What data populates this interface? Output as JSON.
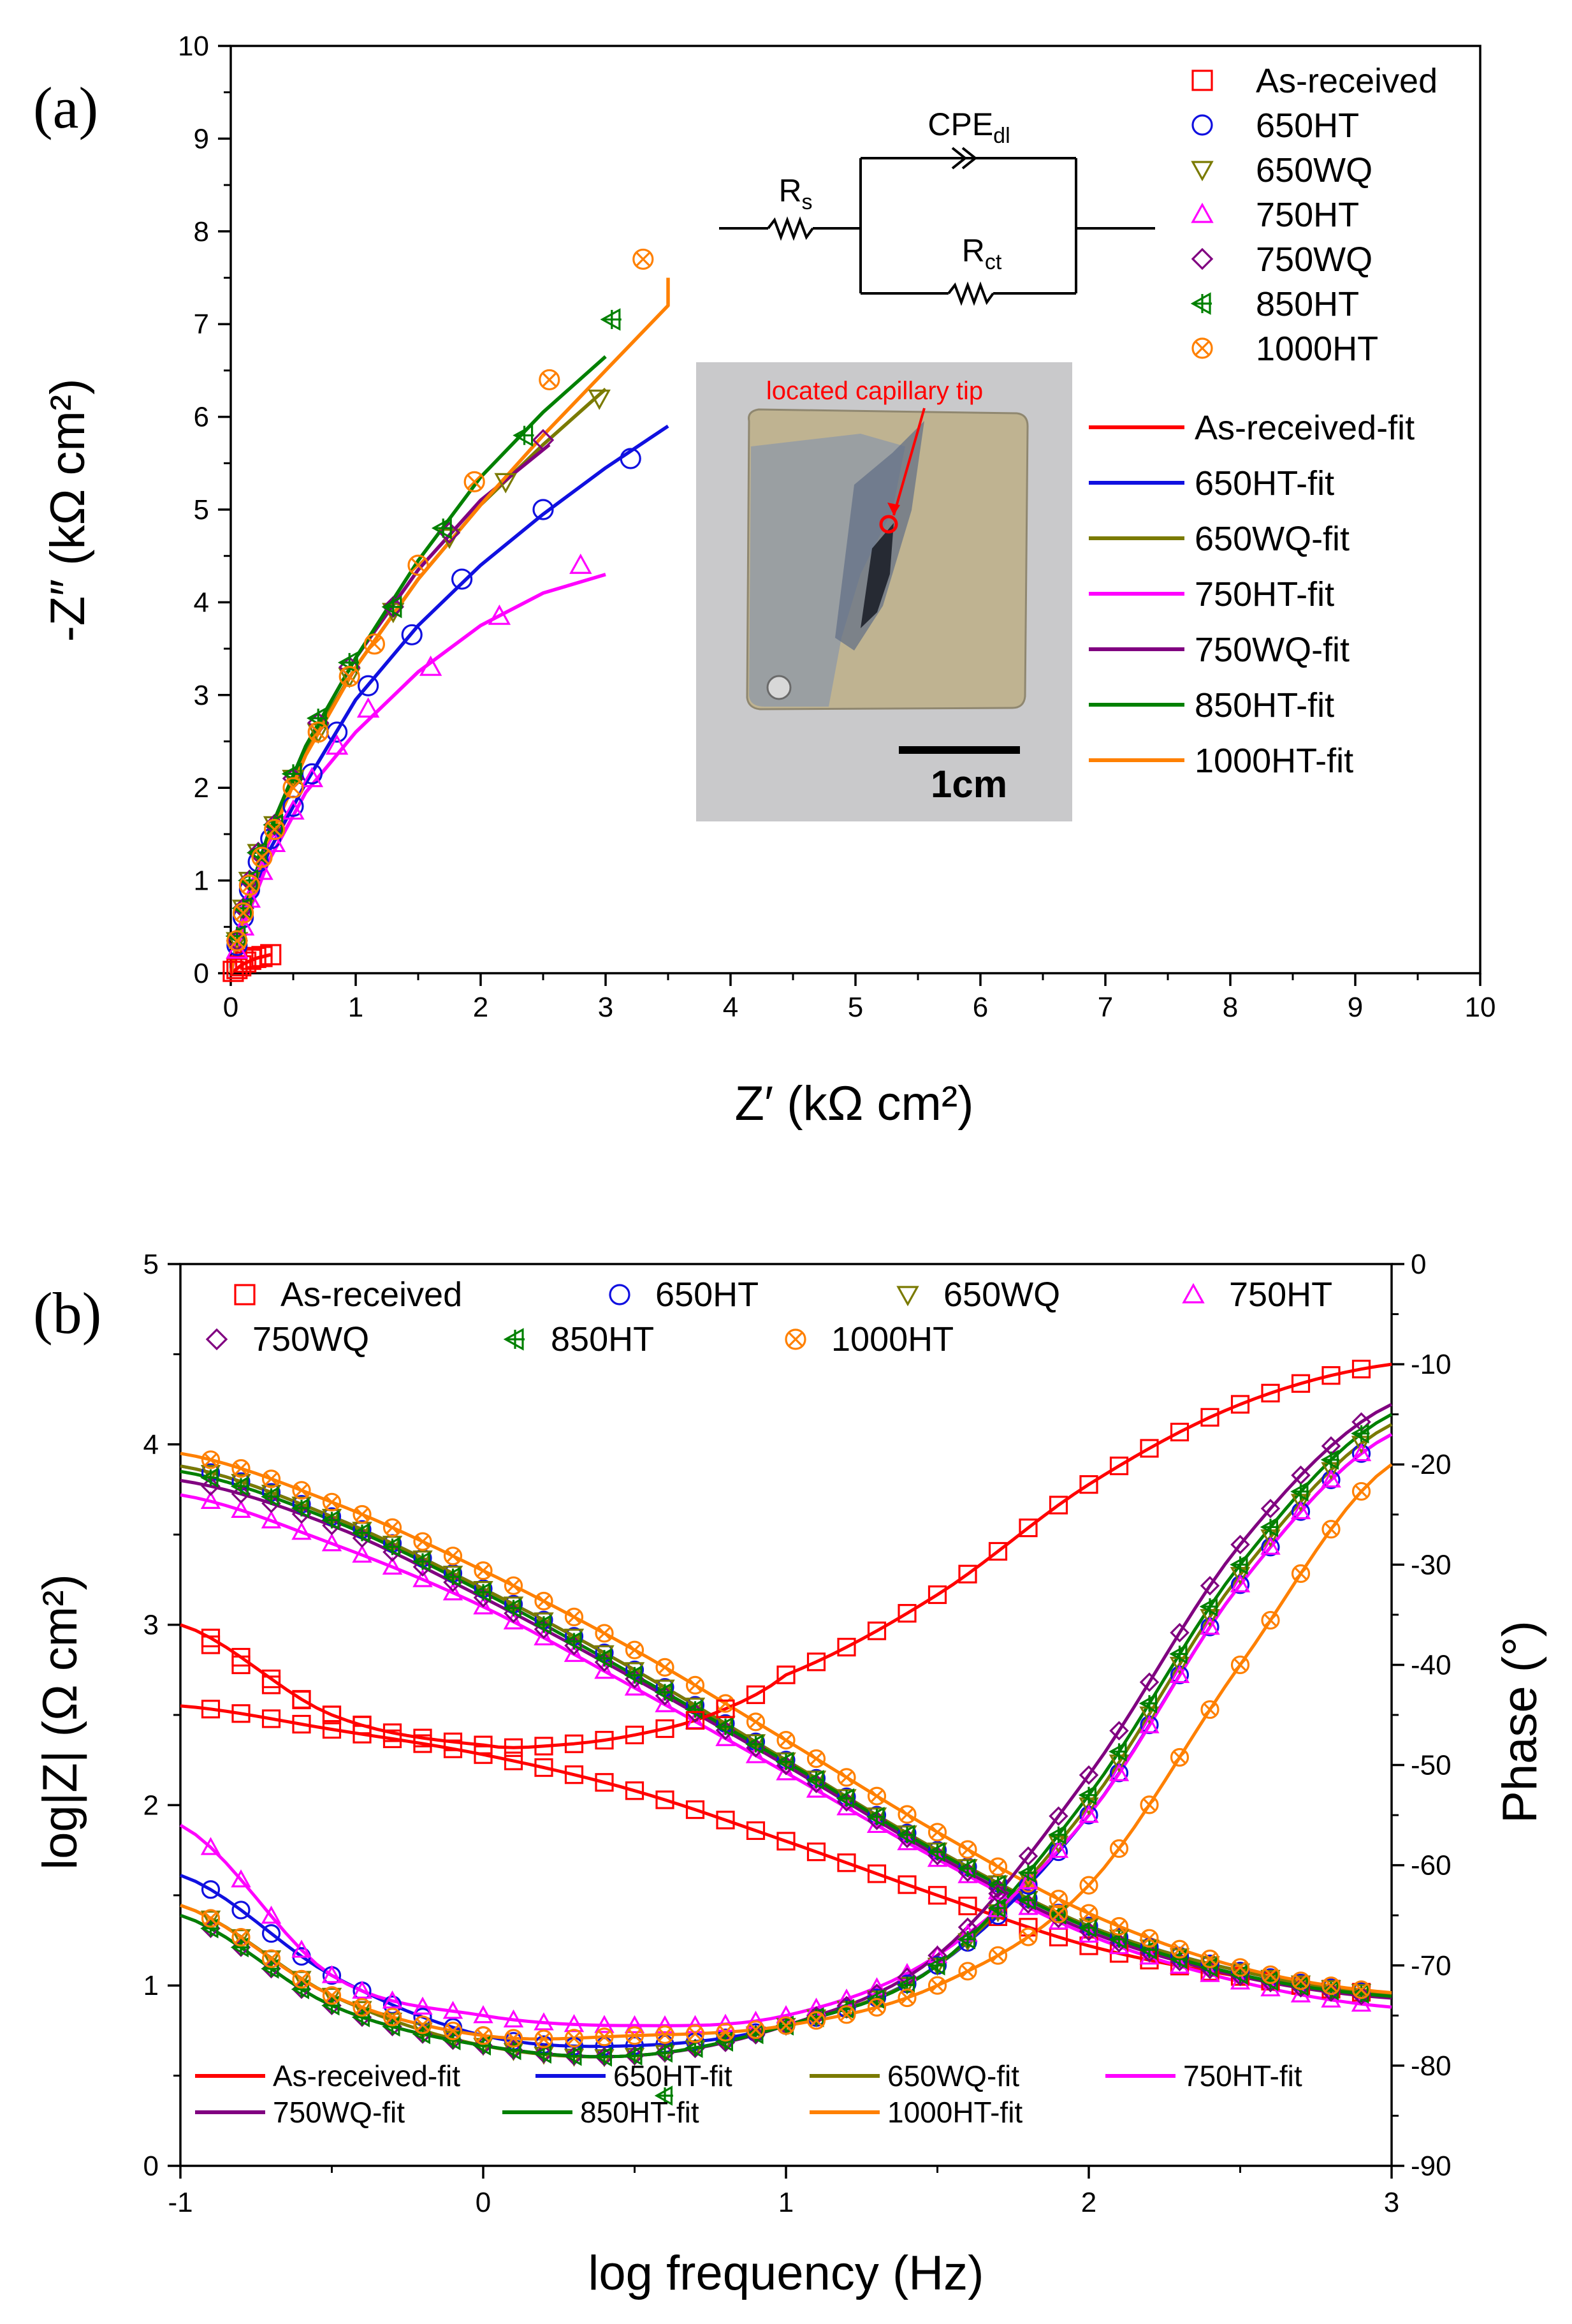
{
  "series_styles": [
    {
      "name": "As-received",
      "fit": "As-received-fit",
      "color": "#ff0000",
      "marker": "square"
    },
    {
      "name": "650HT",
      "fit": "650HT-fit",
      "color": "#1010e0",
      "marker": "circle"
    },
    {
      "name": "650WQ",
      "fit": "650WQ-fit",
      "color": "#7a7a00",
      "marker": "triangle-down"
    },
    {
      "name": "750HT",
      "fit": "750HT-fit",
      "color": "#ff00ff",
      "marker": "triangle-up"
    },
    {
      "name": "750WQ",
      "fit": "750WQ-fit",
      "color": "#800080",
      "marker": "diamond"
    },
    {
      "name": "850HT",
      "fit": "850HT-fit",
      "color": "#008000",
      "marker": "tri-left-cross"
    },
    {
      "name": "1000HT",
      "fit": "1000HT-fit",
      "color": "#ff8000",
      "marker": "circle-x"
    }
  ],
  "chart_data": [
    {
      "type": "scatter",
      "panel_label": "(a)",
      "title": "",
      "xlabel": "Z′ (kΩ cm²)",
      "ylabel": "-Z″ (kΩ cm²)",
      "xlim": [
        0,
        10
      ],
      "ylim": [
        0,
        10
      ],
      "xticks": [
        "0",
        "1",
        "2",
        "3",
        "4",
        "5",
        "6",
        "7",
        "8",
        "9",
        "10"
      ],
      "yticks": [
        "0",
        "1",
        "2",
        "3",
        "4",
        "5",
        "6",
        "7",
        "8",
        "9",
        "10"
      ],
      "legend_position": "top-right",
      "series": [
        {
          "name": "As-received",
          "points": [
            [
              0.02,
              0.02
            ],
            [
              0.05,
              0.05
            ],
            [
              0.08,
              0.08
            ],
            [
              0.12,
              0.12
            ],
            [
              0.16,
              0.15
            ],
            [
              0.2,
              0.17
            ],
            [
              0.25,
              0.18
            ],
            [
              0.32,
              0.2
            ]
          ]
        },
        {
          "name": "650HT",
          "points": [
            [
              0.05,
              0.3
            ],
            [
              0.1,
              0.6
            ],
            [
              0.15,
              0.9
            ],
            [
              0.22,
              1.2
            ],
            [
              0.32,
              1.45
            ],
            [
              0.5,
              1.8
            ],
            [
              0.65,
              2.15
            ],
            [
              0.85,
              2.6
            ],
            [
              1.1,
              3.1
            ],
            [
              1.45,
              3.65
            ],
            [
              1.85,
              4.25
            ],
            [
              2.5,
              5.0
            ],
            [
              3.2,
              5.55
            ]
          ]
        },
        {
          "name": "650WQ",
          "points": [
            [
              0.05,
              0.35
            ],
            [
              0.1,
              0.7
            ],
            [
              0.15,
              1.0
            ],
            [
              0.22,
              1.3
            ],
            [
              0.35,
              1.6
            ],
            [
              0.5,
              2.1
            ],
            [
              0.7,
              2.6
            ],
            [
              0.95,
              3.2
            ],
            [
              1.3,
              3.9
            ],
            [
              1.75,
              4.7
            ],
            [
              2.2,
              5.3
            ],
            [
              2.95,
              6.2
            ]
          ]
        },
        {
          "name": "750HT",
          "points": [
            [
              0.05,
              0.25
            ],
            [
              0.1,
              0.5
            ],
            [
              0.15,
              0.8
            ],
            [
              0.25,
              1.1
            ],
            [
              0.35,
              1.4
            ],
            [
              0.5,
              1.75
            ],
            [
              0.65,
              2.1
            ],
            [
              0.85,
              2.45
            ],
            [
              1.1,
              2.85
            ],
            [
              1.6,
              3.3
            ],
            [
              2.15,
              3.85
            ],
            [
              2.8,
              4.4
            ]
          ]
        },
        {
          "name": "750WQ",
          "points": [
            [
              0.05,
              0.35
            ],
            [
              0.1,
              0.7
            ],
            [
              0.15,
              1.0
            ],
            [
              0.22,
              1.3
            ],
            [
              0.35,
              1.6
            ],
            [
              0.5,
              2.1
            ],
            [
              0.7,
              2.7
            ],
            [
              0.95,
              3.3
            ],
            [
              1.3,
              3.95
            ],
            [
              1.75,
              4.75
            ],
            [
              2.5,
              5.75
            ]
          ]
        },
        {
          "name": "850HT",
          "points": [
            [
              0.05,
              0.4
            ],
            [
              0.1,
              0.7
            ],
            [
              0.15,
              1.0
            ],
            [
              0.22,
              1.3
            ],
            [
              0.35,
              1.6
            ],
            [
              0.5,
              2.15
            ],
            [
              0.7,
              2.75
            ],
            [
              0.95,
              3.35
            ],
            [
              1.3,
              3.95
            ],
            [
              1.7,
              4.8
            ],
            [
              2.35,
              5.8
            ],
            [
              3.05,
              7.05
            ]
          ]
        },
        {
          "name": "1000HT",
          "points": [
            [
              0.05,
              0.35
            ],
            [
              0.1,
              0.65
            ],
            [
              0.15,
              0.95
            ],
            [
              0.25,
              1.25
            ],
            [
              0.35,
              1.55
            ],
            [
              0.5,
              2.0
            ],
            [
              0.7,
              2.6
            ],
            [
              0.95,
              3.2
            ],
            [
              1.15,
              3.55
            ],
            [
              1.5,
              4.4
            ],
            [
              1.95,
              5.3
            ],
            [
              2.55,
              6.4
            ],
            [
              3.3,
              7.7
            ]
          ]
        }
      ],
      "fits": [
        {
          "name": "As-received-fit",
          "points": [
            [
              0,
              0
            ],
            [
              0.1,
              0.1
            ],
            [
              0.2,
              0.16
            ],
            [
              0.32,
              0.2
            ]
          ]
        },
        {
          "name": "650HT-fit",
          "points": [
            [
              0,
              0
            ],
            [
              0.1,
              0.55
            ],
            [
              0.3,
              1.3
            ],
            [
              0.6,
              2.05
            ],
            [
              1.0,
              2.95
            ],
            [
              1.5,
              3.75
            ],
            [
              2.0,
              4.4
            ],
            [
              2.5,
              4.95
            ],
            [
              3.0,
              5.45
            ],
            [
              3.5,
              5.9
            ]
          ]
        },
        {
          "name": "650WQ-fit",
          "points": [
            [
              0,
              0
            ],
            [
              0.1,
              0.6
            ],
            [
              0.3,
              1.45
            ],
            [
              0.6,
              2.4
            ],
            [
              1.0,
              3.3
            ],
            [
              1.5,
              4.25
            ],
            [
              2.0,
              5.05
            ],
            [
              2.5,
              5.7
            ],
            [
              3.0,
              6.3
            ]
          ]
        },
        {
          "name": "750HT-fit",
          "points": [
            [
              0,
              0
            ],
            [
              0.1,
              0.5
            ],
            [
              0.3,
              1.2
            ],
            [
              0.6,
              1.95
            ],
            [
              1.0,
              2.6
            ],
            [
              1.5,
              3.25
            ],
            [
              2.0,
              3.75
            ],
            [
              2.5,
              4.1
            ],
            [
              3.0,
              4.3
            ]
          ]
        },
        {
          "name": "750WQ-fit",
          "points": [
            [
              0,
              0
            ],
            [
              0.1,
              0.65
            ],
            [
              0.3,
              1.5
            ],
            [
              0.6,
              2.45
            ],
            [
              1.0,
              3.4
            ],
            [
              1.5,
              4.35
            ],
            [
              2.0,
              5.1
            ],
            [
              2.55,
              5.7
            ]
          ]
        },
        {
          "name": "850HT-fit",
          "points": [
            [
              0,
              0
            ],
            [
              0.1,
              0.65
            ],
            [
              0.3,
              1.5
            ],
            [
              0.6,
              2.45
            ],
            [
              1.0,
              3.4
            ],
            [
              1.5,
              4.45
            ],
            [
              2.0,
              5.35
            ],
            [
              2.5,
              6.05
            ],
            [
              3.0,
              6.65
            ]
          ]
        },
        {
          "name": "1000HT-fit",
          "points": [
            [
              0,
              0
            ],
            [
              0.1,
              0.6
            ],
            [
              0.3,
              1.4
            ],
            [
              0.6,
              2.35
            ],
            [
              1.0,
              3.3
            ],
            [
              1.5,
              4.25
            ],
            [
              2.0,
              5.05
            ],
            [
              2.5,
              5.8
            ],
            [
              3.0,
              6.5
            ],
            [
              3.5,
              7.2
            ],
            [
              3.5,
              7.2
            ],
            [
              3.5,
              7.5
            ]
          ]
        }
      ],
      "circuit": {
        "cpe": "CPE",
        "cpe_sub": "dl",
        "rs": "R",
        "rs_sub": "s",
        "rct": "R",
        "rct_sub": "ct"
      },
      "inset": {
        "annotation": "located capillary tip",
        "scalebar": "1cm"
      }
    },
    {
      "type": "line",
      "panel_label": "(b)",
      "title": "",
      "xlabel": "log frequency (Hz)",
      "ylabel": "log|Z| (Ω cm²)",
      "y2label": "Phase (°)",
      "xlim": [
        -1,
        3
      ],
      "ylim": [
        0,
        5
      ],
      "y2lim": [
        -90,
        0
      ],
      "xticks": [
        "-1",
        "0",
        "1",
        "2",
        "3"
      ],
      "yticks": [
        "0",
        "1",
        "2",
        "3",
        "4",
        "5"
      ],
      "y2ticks": [
        "-90",
        "-80",
        "-70",
        "-60",
        "-50",
        "-40",
        "-30",
        "-20",
        "-10",
        "0"
      ],
      "legend_position": "top-left and bottom",
      "modulus": [
        {
          "name": "As-received",
          "x": [
            -1,
            -0.5,
            0,
            0.5,
            1,
            1.5,
            2,
            2.5,
            3
          ],
          "y": [
            2.55,
            2.42,
            2.28,
            2.08,
            1.8,
            1.5,
            1.22,
            1.05,
            0.95
          ]
        },
        {
          "name": "650HT",
          "x": [
            -1,
            -0.5,
            0,
            0.5,
            1,
            1.5,
            2,
            2.5,
            3
          ],
          "y": [
            3.88,
            3.6,
            3.2,
            2.75,
            2.25,
            1.75,
            1.33,
            1.08,
            0.95
          ]
        },
        {
          "name": "650WQ",
          "x": [
            -1,
            -0.5,
            0,
            0.5,
            1,
            1.5,
            2,
            2.5,
            3
          ],
          "y": [
            3.88,
            3.6,
            3.2,
            2.75,
            2.25,
            1.75,
            1.33,
            1.08,
            0.95
          ]
        },
        {
          "name": "750HT",
          "x": [
            -1,
            -0.5,
            0,
            0.5,
            1,
            1.5,
            2,
            2.5,
            3
          ],
          "y": [
            3.72,
            3.45,
            3.1,
            2.65,
            2.18,
            1.7,
            1.28,
            1.02,
            0.88
          ]
        },
        {
          "name": "750WQ",
          "x": [
            -1,
            -0.5,
            0,
            0.5,
            1,
            1.5,
            2,
            2.5,
            3
          ],
          "y": [
            3.8,
            3.55,
            3.15,
            2.7,
            2.22,
            1.72,
            1.3,
            1.05,
            0.93
          ]
        },
        {
          "name": "850HT",
          "x": [
            -1,
            -0.5,
            0,
            0.5,
            1,
            1.5,
            2,
            2.5,
            3
          ],
          "y": [
            3.85,
            3.58,
            3.18,
            2.72,
            2.24,
            1.74,
            1.32,
            1.06,
            0.94
          ]
        },
        {
          "name": "1000HT",
          "x": [
            -1,
            -0.5,
            0,
            0.5,
            1,
            1.5,
            2,
            2.5,
            3
          ],
          "y": [
            3.95,
            3.68,
            3.3,
            2.86,
            2.36,
            1.85,
            1.4,
            1.1,
            0.96
          ]
        }
      ],
      "phase": [
        {
          "name": "As-received",
          "x": [
            -1,
            -0.5,
            0,
            0.25,
            0.5,
            0.75,
            1,
            1.5,
            2,
            2.5,
            3
          ],
          "y": [
            -36,
            -45,
            -48,
            -48,
            -47,
            -45,
            -41,
            -33,
            -22,
            -14,
            -10
          ]
        },
        {
          "name": "650HT",
          "x": [
            -1,
            -0.5,
            0,
            0.5,
            1,
            1.5,
            2,
            2.5,
            3
          ],
          "y": [
            -61,
            -71,
            -77,
            -78,
            -76,
            -70,
            -55,
            -32,
            -17
          ]
        },
        {
          "name": "650WQ",
          "x": [
            -1,
            -0.5,
            0,
            0.5,
            1,
            1.5,
            2,
            2.5,
            3
          ],
          "y": [
            -64,
            -73,
            -78,
            -79,
            -76,
            -70,
            -54,
            -31,
            -16
          ]
        },
        {
          "name": "750HT",
          "x": [
            -1,
            -0.5,
            0,
            0.5,
            1,
            1.5,
            2,
            2.5,
            3
          ],
          "y": [
            -56,
            -71,
            -75,
            -76,
            -75,
            -69,
            -55,
            -32,
            -17
          ]
        },
        {
          "name": "750WQ",
          "x": [
            -1,
            -0.5,
            0,
            0.5,
            1,
            1.5,
            2,
            2.5,
            3
          ],
          "y": [
            -65,
            -74,
            -78,
            -79,
            -76,
            -69,
            -51,
            -28,
            -14
          ]
        },
        {
          "name": "850HT",
          "x": [
            -1,
            -0.5,
            0,
            0.5,
            1,
            1.5,
            2,
            2.5,
            3
          ],
          "y": [
            -65,
            -74,
            -78,
            -79,
            -76,
            -70,
            -53,
            -30,
            -15
          ]
        },
        {
          "name": "1000HT",
          "x": [
            -1,
            -0.5,
            0,
            0.5,
            1,
            1.5,
            2,
            2.5,
            3
          ],
          "y": [
            -64,
            -73,
            -77,
            -77,
            -76,
            -72,
            -62,
            -40,
            -20
          ]
        }
      ],
      "phase_extra": [
        {
          "name": "As-received",
          "x": [
            -0.9,
            -0.8,
            -0.7,
            -0.6,
            -0.5,
            -0.4
          ],
          "y": [
            -38,
            -40,
            -42,
            -43.5,
            -45,
            -46
          ]
        }
      ],
      "outliers": [
        {
          "name": "850HT",
          "x": 0.6,
          "y": -83
        }
      ]
    }
  ]
}
